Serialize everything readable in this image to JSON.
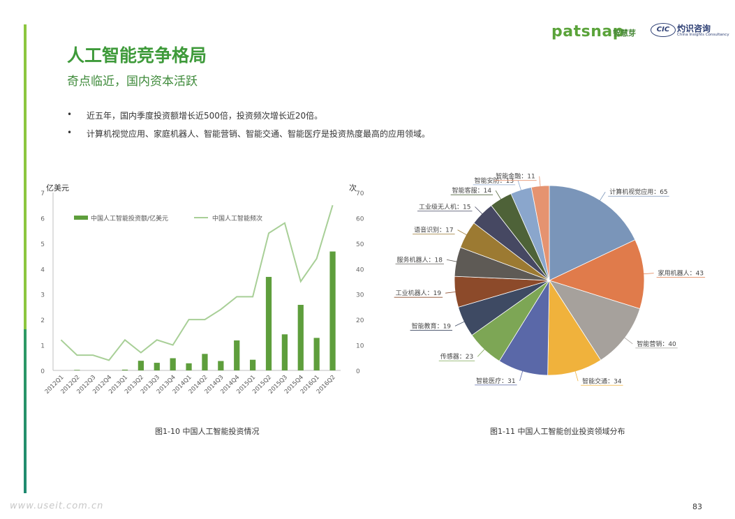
{
  "brand": {
    "name": "patsnap",
    "cn_name": "智慧芽",
    "partner_mark": "CIC",
    "partner_cn": "灼识咨询",
    "partner_en": "China Insights Consultancy"
  },
  "page": {
    "title": "人工智能竞争格局",
    "subtitle": "奇点临近，国内资本活跃",
    "number": "83"
  },
  "bullets": [
    "近五年，国内季度投资额增长近500倍，投资频次增长近20倍。",
    "计算机视觉应用、家庭机器人、智能营销、智能交通、智能医疗是投资热度最高的应用领域。"
  ],
  "bullet_symbol": "•",
  "watermark": "www.useit.com.cn",
  "colors": {
    "green_accent": "#8cc63f",
    "title_green": "#3e9a3a",
    "bar_green": "#5e9e3c",
    "line_green": "#a8cf97"
  },
  "chart_data": [
    {
      "type": "bar+line",
      "caption": "图1-10 中国人工智能投资情况",
      "y_left_label": "亿美元",
      "y_right_label": "次",
      "y_left_range": [
        0,
        7
      ],
      "y_left_ticks": [
        "0",
        "1",
        "2",
        "3",
        "4",
        "5",
        "6",
        "7"
      ],
      "y_right_range": [
        0,
        70
      ],
      "y_right_ticks": [
        "0",
        "10",
        "20",
        "30",
        "40",
        "50",
        "60",
        "70"
      ],
      "categories": [
        "2012Q1",
        "2012Q2",
        "2012Q3",
        "2012Q4",
        "2013Q1",
        "2013Q2",
        "2013Q3",
        "2013Q4",
        "2014Q1",
        "2014Q2",
        "2014Q3",
        "2014Q4",
        "2015Q1",
        "2015Q2",
        "2015Q3",
        "2015Q4",
        "2016Q1",
        "2016Q2"
      ],
      "series": [
        {
          "name": "中国人工智能投资额/亿美元",
          "kind": "bar",
          "axis": "left",
          "values": [
            0,
            0.02,
            0,
            0,
            0.03,
            0.38,
            0.3,
            0.48,
            0.28,
            0.65,
            0.37,
            1.18,
            0.42,
            3.68,
            1.42,
            2.58,
            1.28,
            4.68
          ]
        },
        {
          "name": "中国人工智能频次",
          "kind": "line",
          "axis": "right",
          "values": [
            12,
            6,
            6,
            4,
            12,
            7,
            12,
            10,
            20,
            20,
            24,
            29,
            29,
            54,
            58,
            35,
            44,
            65
          ]
        }
      ],
      "legend_placement": "top-left",
      "grid": false
    },
    {
      "type": "pie",
      "caption": "图1-11 中国人工智能创业投资领域分布",
      "slices": [
        {
          "label": "计算机视觉应用：65",
          "value": 65,
          "color": "#7a95b9"
        },
        {
          "label": "家用机器人：43",
          "value": 43,
          "color": "#e07b4b"
        },
        {
          "label": "智能营销：40",
          "value": 40,
          "color": "#a6a19c"
        },
        {
          "label": "智能交通：34",
          "value": 34,
          "color": "#f0b23c"
        },
        {
          "label": "智能医疗：31",
          "value": 31,
          "color": "#5a68a8"
        },
        {
          "label": "传感器：23",
          "value": 23,
          "color": "#7da655"
        },
        {
          "label": "智能教育：19",
          "value": 19,
          "color": "#3e4a63"
        },
        {
          "label": "工业机器人：19",
          "value": 19,
          "color": "#8c4a2a"
        },
        {
          "label": "服务机器人：18",
          "value": 18,
          "color": "#5e5a55"
        },
        {
          "label": "语音识别：17",
          "value": 17,
          "color": "#9c7a32"
        },
        {
          "label": "工业级无人机：15",
          "value": 15,
          "color": "#464862"
        },
        {
          "label": "智能客服：14",
          "value": 14,
          "color": "#4e6238"
        },
        {
          "label": "智能安防：13",
          "value": 13,
          "color": "#8aa6cc"
        },
        {
          "label": "智能金融：11",
          "value": 11,
          "color": "#e59370"
        }
      ]
    }
  ]
}
